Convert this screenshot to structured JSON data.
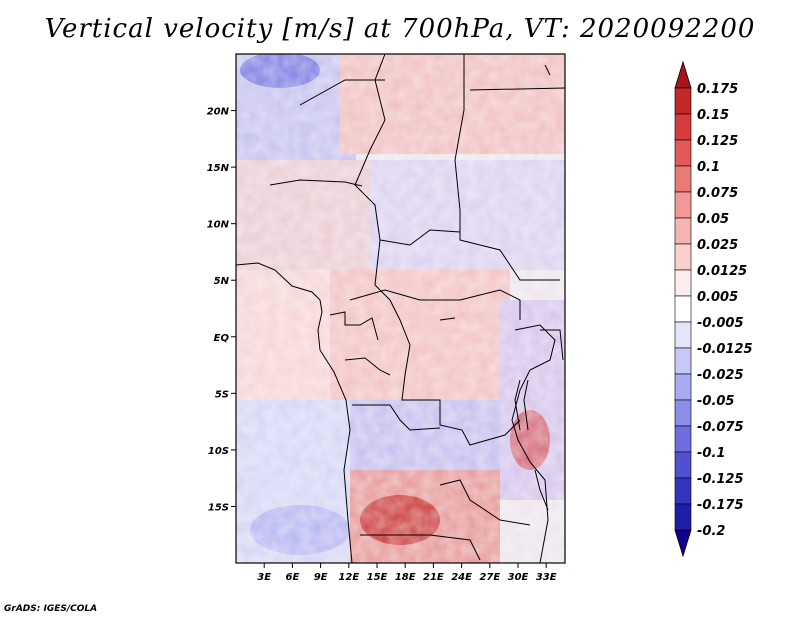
{
  "title": "Vertical velocity [m/s] at 700hPa, VT: 2020092200",
  "credit": "GrADS: IGES/COLA",
  "map": {
    "lon_labels": [
      "3E",
      "6E",
      "9E",
      "12E",
      "15E",
      "18E",
      "21E",
      "24E",
      "27E",
      "30E",
      "33E"
    ],
    "lon_values": [
      3,
      6,
      9,
      12,
      15,
      18,
      21,
      24,
      27,
      30,
      33
    ],
    "lat_labels": [
      "20N",
      "15N",
      "10N",
      "5N",
      "EQ",
      "5S",
      "10S",
      "15S"
    ],
    "lat_values": [
      20,
      15,
      10,
      5,
      0,
      -5,
      -10,
      -15
    ],
    "lon_range": [
      0,
      35
    ],
    "lat_range": [
      -20,
      25
    ]
  },
  "colorbar": {
    "labels": [
      "0.175",
      "0.15",
      "0.125",
      "0.1",
      "0.075",
      "0.05",
      "0.025",
      "0.0125",
      "0.005",
      "-0.005",
      "-0.0125",
      "-0.025",
      "-0.05",
      "-0.075",
      "-0.1",
      "-0.125",
      "-0.175",
      "-0.2"
    ],
    "colors": [
      "#a8141c",
      "#c42828",
      "#d63c3c",
      "#e25a58",
      "#ea7a76",
      "#f29896",
      "#f6b4b2",
      "#fad0ce",
      "#fdecec",
      "#ffffff",
      "#e4e4fa",
      "#c8c8f6",
      "#aaaaf2",
      "#8c8cea",
      "#6e6ee0",
      "#5050d2",
      "#3434be",
      "#1e1ea8",
      "#100090"
    ]
  }
}
